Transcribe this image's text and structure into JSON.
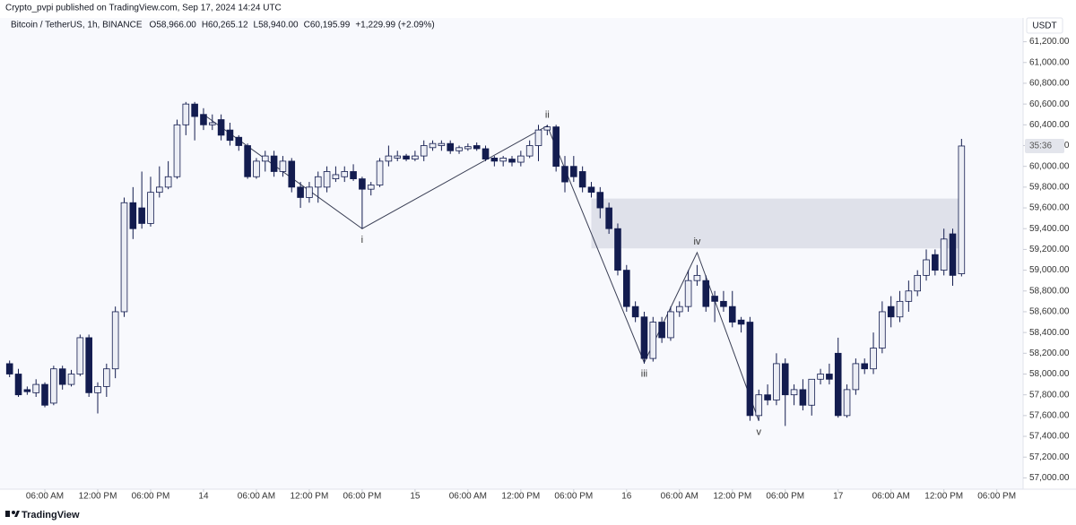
{
  "header": {
    "publisher": "Crypto_pvpi published on TradingView.com, Sep 17, 2024 14:24 UTC",
    "symbol": "Bitcoin / TetherUS, 1h, BINANCE",
    "ohlc": [
      "O58,966.00",
      "H60,265.12",
      "L58,940.00",
      "C60,195.99",
      "+1,229.99 (+2.09%)"
    ]
  },
  "footer": {
    "brand": "TradingView"
  },
  "chart_data": {
    "type": "candlestick",
    "currency": "USDT",
    "countdown": "35:36",
    "up_color": "#eceef5",
    "down_color": "#131c4f",
    "outline_color": "#131c4f",
    "categories": [
      null,
      null,
      null,
      null,
      "06:00 AM",
      null,
      null,
      null,
      null,
      null,
      "12:00 PM",
      null,
      null,
      null,
      null,
      null,
      "06:00 PM",
      null,
      null,
      null,
      null,
      null,
      "14",
      null,
      null,
      null,
      null,
      null,
      "06:00 AM",
      null,
      null,
      null,
      null,
      null,
      "12:00 PM",
      null,
      null,
      null,
      null,
      null,
      "06:00 PM",
      null,
      null,
      null,
      null,
      null,
      "15",
      null,
      null,
      null,
      null,
      null,
      "06:00 AM",
      null,
      null,
      null,
      null,
      null,
      "12:00 PM",
      null,
      null,
      null,
      null,
      null,
      "06:00 PM",
      null,
      null,
      null,
      null,
      null,
      "16",
      null,
      null,
      null,
      null,
      null,
      "06:00 AM",
      null,
      null,
      null,
      null,
      null,
      "12:00 PM",
      null,
      null,
      null,
      null,
      null,
      "06:00 PM",
      null,
      null,
      null,
      null,
      null,
      "17",
      null,
      null,
      null,
      null,
      null,
      "06:00 AM",
      null,
      null,
      null,
      null,
      null,
      "12:00 PM",
      null,
      null,
      null,
      null,
      null,
      "06:00 PM"
    ],
    "open": [
      58100,
      58000,
      57850,
      57820,
      57900,
      57720,
      58050,
      57900,
      58000,
      58350,
      57820,
      57880,
      58050,
      58600,
      59650,
      59600,
      59450,
      59750,
      59800,
      59900,
      60400,
      60600,
      60500,
      60400,
      60450,
      60350,
      60280,
      60200,
      59900,
      60050,
      60100,
      59950,
      60050,
      59800,
      59700,
      59800,
      59800,
      59880,
      59900,
      59950,
      59880,
      59780,
      59820,
      60050,
      60080,
      60100,
      60070,
      60100,
      60180,
      60200,
      60220,
      60150,
      60170,
      60200,
      60170,
      60080,
      60050,
      60070,
      60040,
      60100,
      60200,
      60350,
      60380,
      60000,
      60000,
      59950,
      59800,
      59750,
      59600,
      59400,
      59000,
      58650,
      58550,
      58150,
      58500,
      58350,
      58600,
      58650,
      58900,
      58900,
      58750,
      58700,
      58650,
      58520,
      58500,
      57600,
      57800,
      57750,
      58100,
      57800,
      57850,
      57700,
      57950,
      58000,
      58200,
      57600,
      57850,
      58100,
      58050,
      58250,
      58650,
      58550,
      58700,
      58800,
      58950,
      59150,
      59000,
      59350,
      58966,
      null,
      null,
      null,
      null
    ],
    "high": [
      58130,
      58050,
      57880,
      57950,
      57920,
      58080,
      58080,
      58040,
      58380,
      58380,
      57920,
      58100,
      58650,
      59700,
      59800,
      59950,
      59900,
      60000,
      60050,
      60450,
      60620,
      60620,
      60560,
      60500,
      60500,
      60420,
      60300,
      60220,
      60080,
      60150,
      60150,
      60100,
      60080,
      59850,
      59850,
      59950,
      60000,
      60000,
      60000,
      60020,
      59900,
      59850,
      60080,
      60200,
      60150,
      60120,
      60150,
      60250,
      60250,
      60250,
      60250,
      60200,
      60220,
      60230,
      60200,
      60100,
      60100,
      60100,
      60150,
      60250,
      60400,
      60400,
      60400,
      60100,
      60100,
      60000,
      59850,
      59800,
      59650,
      59450,
      59050,
      58700,
      58600,
      58550,
      58550,
      58650,
      58700,
      59000,
      59050,
      58950,
      58800,
      58800,
      58800,
      58550,
      58550,
      57850,
      57900,
      58200,
      58150,
      57900,
      57950,
      57950,
      58050,
      58100,
      58350,
      57900,
      58150,
      58150,
      58400,
      58700,
      58750,
      58800,
      58900,
      59000,
      59200,
      59200,
      59400,
      59400,
      60265.12,
      null,
      null,
      null,
      null
    ],
    "low": [
      57970,
      57780,
      57800,
      57780,
      57680,
      57700,
      57850,
      57880,
      57980,
      57780,
      57620,
      57780,
      57960,
      58550,
      59300,
      59400,
      59420,
      59700,
      59780,
      59880,
      60300,
      60250,
      60350,
      60350,
      60250,
      60200,
      60150,
      59880,
      59880,
      59950,
      59900,
      59900,
      59750,
      59600,
      59650,
      59650,
      59750,
      59850,
      59850,
      59860,
      59400,
      59720,
      59800,
      60000,
      60050,
      60050,
      60050,
      60050,
      60150,
      60150,
      60120,
      60120,
      60150,
      60150,
      60050,
      60000,
      60000,
      60000,
      60000,
      60080,
      60050,
      60300,
      59950,
      59750,
      59850,
      59750,
      59700,
      59500,
      59350,
      58950,
      58600,
      58500,
      58100,
      58120,
      58300,
      58320,
      58550,
      58600,
      58850,
      58600,
      58500,
      58600,
      58450,
      58400,
      57550,
      57550,
      57700,
      57700,
      57500,
      57700,
      57650,
      57600,
      57900,
      57900,
      57580,
      57580,
      57800,
      58000,
      58000,
      58200,
      58450,
      58500,
      58600,
      58750,
      58900,
      58950,
      58950,
      58850,
      58940,
      null,
      null,
      null,
      null
    ],
    "close": [
      58000,
      57800,
      57830,
      57900,
      57700,
      58050,
      57900,
      58000,
      58350,
      57820,
      57880,
      58050,
      58600,
      59650,
      59400,
      59450,
      59750,
      59800,
      59900,
      60400,
      60600,
      60480,
      60400,
      60420,
      60300,
      60250,
      60200,
      59900,
      60050,
      60100,
      59950,
      60050,
      59800,
      59700,
      59800,
      59900,
      59950,
      59920,
      59950,
      59880,
      59780,
      59820,
      60050,
      60100,
      60100,
      60070,
      60100,
      60200,
      60220,
      60220,
      60150,
      60180,
      60190,
      60170,
      60070,
      60050,
      60080,
      60040,
      60100,
      60200,
      60350,
      60380,
      60000,
      59850,
      59900,
      59800,
      59750,
      59600,
      59400,
      59000,
      58650,
      58550,
      58150,
      58500,
      58350,
      58600,
      58650,
      58900,
      58950,
      58650,
      58700,
      58650,
      58500,
      58480,
      57600,
      57800,
      57750,
      58100,
      57800,
      57850,
      57700,
      57950,
      58000,
      57950,
      57600,
      57850,
      58100,
      58050,
      58250,
      58600,
      58550,
      58700,
      58800,
      58950,
      59100,
      59000,
      59300,
      58950,
      60195.99,
      null,
      null,
      null,
      null
    ],
    "ylim": [
      56900,
      61300
    ],
    "yticks": [
      {
        "value": 57000,
        "label": "57,000.00"
      },
      {
        "value": 57200,
        "label": "57,200.00"
      },
      {
        "value": 57400,
        "label": "57,400.00"
      },
      {
        "value": 57600,
        "label": "57,600.00"
      },
      {
        "value": 57800,
        "label": "57,800.00"
      },
      {
        "value": 58000,
        "label": "58,000.00"
      },
      {
        "value": 58200,
        "label": "58,200.00"
      },
      {
        "value": 58400,
        "label": "58,400.00"
      },
      {
        "value": 58600,
        "label": "58,600.00"
      },
      {
        "value": 58800,
        "label": "58,800.00"
      },
      {
        "value": 59000,
        "label": "59,000.00"
      },
      {
        "value": 59200,
        "label": "59,200.00"
      },
      {
        "value": 59400,
        "label": "59,400.00"
      },
      {
        "value": 59600,
        "label": "59,600.00"
      },
      {
        "value": 59800,
        "label": "59,800.00"
      },
      {
        "value": 60000,
        "label": "60,000.00"
      },
      {
        "value": 60200,
        "label": "60,200.00"
      },
      {
        "value": 60400,
        "label": "60,400.00"
      },
      {
        "value": 60600,
        "label": "60,600.00"
      },
      {
        "value": 60800,
        "label": "60,800.00"
      },
      {
        "value": 61000,
        "label": "61,000.00"
      },
      {
        "value": 61200,
        "label": "61,200.00"
      }
    ],
    "zone": {
      "from": 66,
      "to": 108,
      "low": 59210,
      "high": 59690,
      "color": "#dfe1ea"
    },
    "wave": {
      "index": [
        22,
        40,
        61,
        72,
        78,
        85
      ],
      "values": [
        60500,
        59400,
        60390,
        58110,
        59170,
        57550
      ],
      "labels": [
        null,
        "i",
        "ii",
        "iii",
        "iv",
        "v"
      ],
      "color": "#3a3f55"
    }
  }
}
